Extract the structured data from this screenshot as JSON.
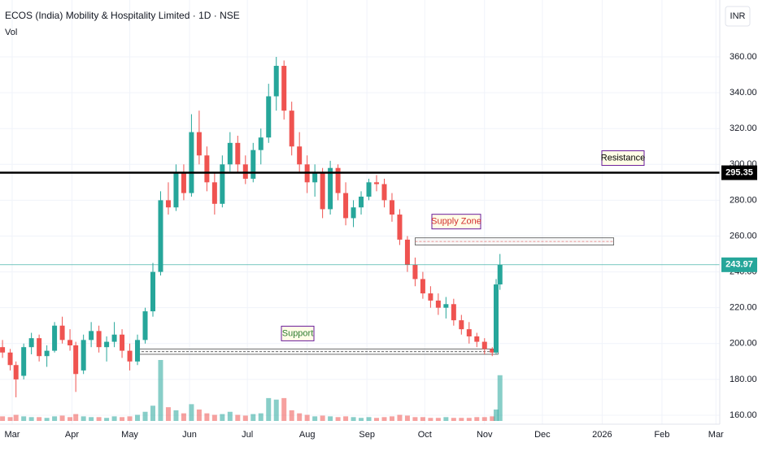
{
  "chart_data": {
    "type": "candlestick",
    "title": "ECOS (India) Mobility & Hospitality Limited · 1D · NSE",
    "volume_label": "Vol",
    "currency": "INR",
    "up_color": "#26a69a",
    "down_color": "#ef5350",
    "grid": true,
    "x": [
      -5,
      -1,
      2,
      6,
      10,
      14,
      18,
      22,
      26,
      30,
      33,
      37,
      41,
      45,
      49,
      53,
      57,
      61,
      65,
      69,
      73,
      77,
      81,
      85,
      89,
      93,
      97,
      101,
      105,
      109,
      113,
      117,
      121,
      125,
      129,
      133,
      137,
      141,
      145,
      149,
      153,
      157,
      161,
      165,
      169,
      173,
      177,
      181,
      185,
      189,
      193,
      197,
      201,
      205,
      209,
      213,
      217,
      221,
      225,
      229,
      233,
      237,
      241,
      245,
      249,
      251,
      253
    ],
    "open": [
      198,
      195,
      188,
      182,
      198,
      203,
      193,
      196,
      210,
      202,
      199,
      185,
      202,
      207,
      198,
      201,
      205,
      196,
      190,
      202,
      218,
      240,
      280,
      276,
      295,
      284,
      318,
      305,
      290,
      278,
      300,
      312,
      300,
      292,
      308,
      315,
      338,
      355,
      330,
      310,
      300,
      290,
      295,
      275,
      298,
      284,
      270,
      276,
      282,
      290,
      289,
      280,
      272,
      258,
      244,
      236,
      228,
      224,
      220,
      222,
      213,
      208,
      204,
      201,
      197,
      195,
      233
    ],
    "high": [
      202,
      197,
      190,
      200,
      206,
      205,
      199,
      212,
      215,
      208,
      201,
      205,
      212,
      210,
      204,
      212,
      208,
      200,
      205,
      220,
      245,
      285,
      290,
      300,
      300,
      328,
      330,
      310,
      295,
      305,
      318,
      316,
      305,
      312,
      320,
      345,
      360,
      358,
      335,
      318,
      305,
      300,
      298,
      302,
      300,
      290,
      280,
      285,
      292,
      294,
      292,
      284,
      275,
      260,
      248,
      240,
      232,
      228,
      226,
      225,
      216,
      212,
      206,
      203,
      198,
      236,
      250
    ],
    "low": [
      192,
      185,
      170,
      180,
      194,
      190,
      187,
      195,
      200,
      196,
      173,
      183,
      198,
      195,
      190,
      198,
      192,
      185,
      188,
      200,
      215,
      238,
      272,
      274,
      280,
      282,
      300,
      285,
      272,
      276,
      296,
      295,
      289,
      290,
      300,
      312,
      330,
      325,
      305,
      295,
      284,
      282,
      270,
      272,
      280,
      266,
      265,
      272,
      280,
      285,
      276,
      268,
      255,
      240,
      232,
      225,
      220,
      216,
      214,
      210,
      205,
      200,
      198,
      194,
      193,
      194,
      230
    ],
    "close": [
      195,
      188,
      180,
      198,
      203,
      193,
      196,
      210,
      202,
      199,
      183,
      202,
      207,
      198,
      201,
      205,
      196,
      190,
      202,
      218,
      240,
      280,
      276,
      295,
      284,
      318,
      305,
      290,
      278,
      300,
      312,
      300,
      292,
      308,
      315,
      338,
      355,
      330,
      310,
      300,
      290,
      295,
      275,
      298,
      284,
      270,
      276,
      282,
      290,
      289,
      280,
      272,
      258,
      244,
      236,
      228,
      224,
      220,
      222,
      213,
      208,
      204,
      201,
      197,
      195,
      233,
      243.97
    ],
    "volume": [
      6,
      5,
      8,
      6,
      5,
      5,
      4,
      6,
      7,
      5,
      9,
      6,
      5,
      5,
      4,
      6,
      5,
      6,
      8,
      12,
      20,
      80,
      18,
      14,
      10,
      22,
      15,
      10,
      8,
      9,
      12,
      8,
      7,
      9,
      10,
      30,
      28,
      30,
      14,
      10,
      8,
      6,
      7,
      6,
      5,
      6,
      5,
      4,
      5,
      4,
      5,
      6,
      8,
      7,
      5,
      5,
      4,
      4,
      5,
      4,
      4,
      4,
      5,
      5,
      6,
      15,
      60
    ],
    "xlim": [
      -6.3,
      367
    ],
    "xticks": [
      {
        "value": 0,
        "label": "Mar"
      },
      {
        "value": 31,
        "label": "Apr"
      },
      {
        "value": 61,
        "label": "May"
      },
      {
        "value": 92,
        "label": "Jun"
      },
      {
        "value": 122,
        "label": "Jul"
      },
      {
        "value": 153,
        "label": "Aug"
      },
      {
        "value": 184,
        "label": "Sep"
      },
      {
        "value": 214,
        "label": "Oct"
      },
      {
        "value": 245,
        "label": "Nov"
      },
      {
        "value": 275,
        "label": "Dec"
      },
      {
        "value": 306,
        "label": "2026"
      },
      {
        "value": 337,
        "label": "Feb"
      },
      {
        "value": 365,
        "label": "Mar"
      }
    ],
    "ylim": [
      155,
      391.75
    ],
    "yticks": [
      {
        "value": 160,
        "label": "160.00"
      },
      {
        "value": 180,
        "label": "180.00"
      },
      {
        "value": 200,
        "label": "200.00"
      },
      {
        "value": 220,
        "label": "220.00"
      },
      {
        "value": 240,
        "label": "240.00"
      },
      {
        "value": 260,
        "label": "260.00"
      },
      {
        "value": 280,
        "label": "280.00"
      },
      {
        "value": 300,
        "label": "300.00"
      },
      {
        "value": 320,
        "label": "320.00"
      },
      {
        "value": 340,
        "label": "340.00"
      },
      {
        "value": 360,
        "label": "360.00"
      }
    ],
    "resistance": {
      "text": "Resistance",
      "value": 295.35,
      "label": "295.35"
    },
    "supply_zone": {
      "text": "Supply Zone",
      "range": [
        255,
        259
      ],
      "x_range": [
        209,
        312
      ]
    },
    "support_zone": {
      "text": "Support",
      "range": [
        194,
        197
      ],
      "x_range": [
        65,
        252
      ]
    },
    "last_price": {
      "value": 243.97,
      "label": "243.97"
    }
  }
}
